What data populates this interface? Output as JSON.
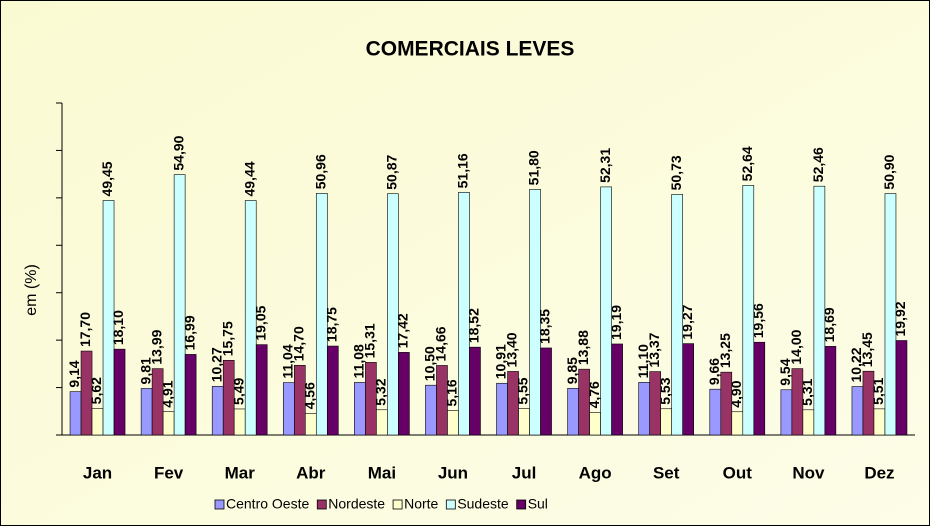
{
  "chart_data": {
    "type": "bar",
    "title": "COMERCIAIS LEVES",
    "y_label": "em (%)",
    "categories": [
      "Jan",
      "Fev",
      "Mar",
      "Abr",
      "Mai",
      "Jun",
      "Jul",
      "Ago",
      "Set",
      "Out",
      "Nov",
      "Dez"
    ],
    "ylim": [
      0,
      70
    ],
    "yticks": [
      0,
      10,
      20,
      30,
      40,
      50,
      60,
      70
    ],
    "series": [
      {
        "name": "Centro Oeste",
        "color": "#9999ff",
        "values": [
          9.14,
          9.81,
          10.27,
          11.04,
          11.08,
          10.5,
          10.91,
          9.85,
          11.1,
          9.66,
          9.54,
          10.22
        ],
        "value_labels": [
          "9,14",
          "9,81",
          "10,27",
          "11,04",
          "11,08",
          "10,50",
          "10,91",
          "9,85",
          "11,10",
          "9,66",
          "9,54",
          "10,22"
        ]
      },
      {
        "name": "Nordeste",
        "color": "#993366",
        "values": [
          17.7,
          13.99,
          15.75,
          14.7,
          15.31,
          14.66,
          13.4,
          13.88,
          13.37,
          13.25,
          14.0,
          13.45
        ],
        "value_labels": [
          "17,70",
          "13,99",
          "15,75",
          "14,70",
          "15,31",
          "14,66",
          "13,40",
          "13,88",
          "13,37",
          "13,25",
          "14,00",
          "13,45"
        ]
      },
      {
        "name": "Norte",
        "color": "#ffffcc",
        "values": [
          5.62,
          4.91,
          5.49,
          4.56,
          5.32,
          5.16,
          5.55,
          4.76,
          5.53,
          4.9,
          5.31,
          5.51
        ],
        "value_labels": [
          "5,62",
          "4,91",
          "5,49",
          "4,56",
          "5,32",
          "5,16",
          "5,55",
          "4,76",
          "5,53",
          "4,90",
          "5,31",
          "5,51"
        ]
      },
      {
        "name": "Sudeste",
        "color": "#ccffff",
        "values": [
          49.45,
          54.9,
          49.44,
          50.96,
          50.87,
          51.16,
          51.8,
          52.31,
          50.73,
          52.64,
          52.46,
          50.9
        ],
        "value_labels": [
          "49,45",
          "54,90",
          "49,44",
          "50,96",
          "50,87",
          "51,16",
          "51,80",
          "52,31",
          "50,73",
          "52,64",
          "52,46",
          "50,90"
        ]
      },
      {
        "name": "Sul",
        "color": "#660066",
        "values": [
          18.1,
          16.99,
          19.05,
          18.75,
          17.42,
          18.52,
          18.35,
          19.19,
          19.27,
          19.56,
          18.69,
          19.92
        ],
        "value_labels": [
          "18,10",
          "16,99",
          "19,05",
          "18,75",
          "17,42",
          "18,52",
          "18,35",
          "19,19",
          "19,27",
          "19,56",
          "18,69",
          "19,92"
        ]
      }
    ]
  }
}
